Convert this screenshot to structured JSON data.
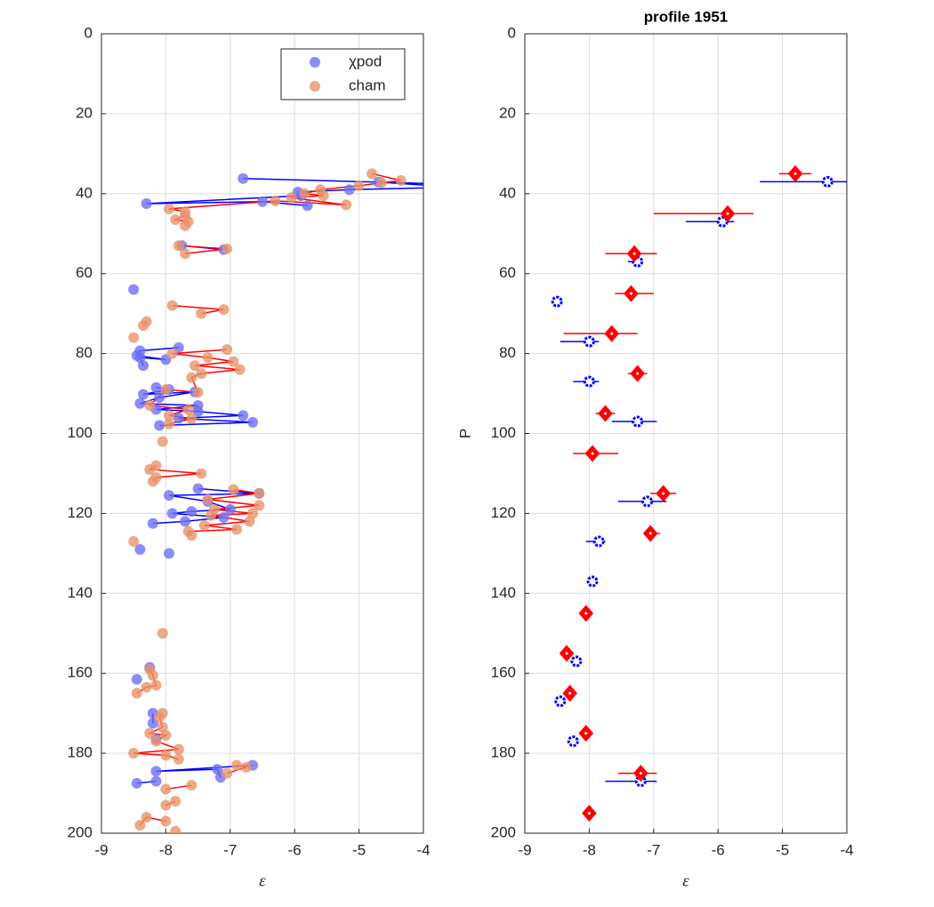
{
  "chart_data": [
    {
      "type": "scatter",
      "xlabel": "ε",
      "xlim": [
        -9,
        -4
      ],
      "ylim": [
        0,
        200
      ],
      "y_direction": "reverse",
      "xticks": [
        -9,
        -8,
        -7,
        -6,
        -5,
        -4
      ],
      "yticks": [
        0,
        20,
        40,
        60,
        80,
        100,
        120,
        140,
        160,
        180,
        200
      ],
      "grid": true,
      "legend": "upper right",
      "series": [
        {
          "name": "χpod",
          "color": "#0000ff",
          "marker_color": "#6f6ff5",
          "x": [
            -6.8,
            -3.6,
            -4.7,
            -3.5,
            -5.15,
            -5.95,
            -5.9,
            -8.3,
            -6.5,
            -5.8,
            null,
            -7.75,
            -7.1,
            null,
            -8.5,
            null,
            -7.8,
            -8.4,
            -8.45,
            -8.0,
            -8.4,
            -8.35,
            null,
            -8.15,
            -7.95,
            -8.35,
            -7.55,
            -8.1,
            -8.4,
            -7.5,
            -8.15,
            -7.5,
            -6.8,
            -7.8,
            -6.65,
            -8.1,
            null,
            -7.5,
            -6.55,
            -7.95,
            -7.35,
            -7.0,
            -7.6,
            -7.9,
            -7.1,
            -7.7,
            -8.2,
            null,
            -8.4,
            null,
            -7.95,
            null,
            -8.25,
            null,
            -8.45,
            null,
            -8.2,
            -8.2,
            null,
            -8.15,
            null,
            -6.65,
            -8.15,
            -7.2,
            -7.15,
            null,
            -8.15,
            -8.45
          ],
          "y": [
            36.2,
            37.6,
            37.1,
            38.4,
            39,
            39.6,
            40.5,
            42.5,
            42,
            43,
            null,
            53,
            54,
            null,
            64,
            null,
            78.5,
            79.3,
            80.5,
            81.5,
            81,
            83,
            null,
            88.5,
            89,
            90.2,
            89.6,
            91,
            92.5,
            93,
            94,
            94.5,
            95.5,
            96.2,
            97.2,
            98,
            null,
            113.8,
            115,
            115.5,
            117,
            119,
            119.5,
            120,
            121,
            122,
            122.5,
            null,
            129,
            null,
            130,
            null,
            158.5,
            null,
            161.5,
            null,
            170,
            172.5,
            null,
            176.5,
            null,
            183,
            184.5,
            184,
            186,
            null,
            187,
            187.5
          ]
        },
        {
          "name": "cham",
          "color": "#ff0000",
          "marker_color": "#e8946a",
          "x": [
            -4.8,
            -4.35,
            -4.65,
            -5.0,
            -5.6,
            -5.85,
            -5.55,
            -6.05,
            -5.2,
            -6.3,
            -7.95,
            -7.7,
            -7.7,
            -7.85,
            -7.65,
            -7.7,
            null,
            -7.8,
            -7.05,
            -7.7,
            null,
            -7.9,
            -7.1,
            -7.45,
            null,
            -8.3,
            -8.35,
            null,
            -8.5,
            null,
            -7.05,
            -7.9,
            -7.35,
            -6.95,
            -7.55,
            -6.85,
            -7.45,
            -7.6,
            -7.5,
            -8.0,
            -8.25,
            -7.65,
            -7.95,
            -7.6,
            -7.95,
            null,
            -8.05,
            null,
            -8.15,
            -8.25,
            -7.45,
            -8.15,
            -8.2,
            null,
            -6.95,
            -6.55,
            -7.35,
            -6.55,
            -7.25,
            -6.65,
            -7.3,
            -6.7,
            -7.4,
            -6.9,
            -7.65,
            -7.6,
            null,
            -8.5,
            null,
            -8.05,
            null,
            -8.25,
            -8.2,
            -8.15,
            -8.3,
            -8.45,
            null,
            -8.05,
            -8.1,
            -8.05,
            -8.25,
            -8.0,
            -8.15,
            -7.8,
            -8.5,
            -8.0,
            -7.8,
            null,
            -6.9,
            -6.75,
            -7.05,
            null,
            -7.6,
            -8.0,
            null,
            -7.85,
            -8.0,
            null,
            -8.0,
            -8.3,
            -8.4,
            null,
            -7.85
          ],
          "y": [
            35,
            36.7,
            37.3,
            38,
            39,
            40,
            40.5,
            41,
            42.8,
            41.8,
            43.8,
            44.5,
            45.5,
            46.5,
            47,
            48,
            null,
            53,
            53.8,
            55,
            null,
            68,
            69,
            70,
            null,
            72,
            73,
            null,
            76,
            null,
            79,
            80,
            81,
            82,
            83,
            84,
            85,
            86,
            89.7,
            89,
            93,
            94,
            95.5,
            96.3,
            97.6,
            null,
            102,
            null,
            108,
            109,
            110,
            111,
            112,
            null,
            114,
            115,
            116.5,
            118,
            119,
            120,
            120.5,
            122,
            123,
            124,
            124.5,
            125.5,
            null,
            127,
            null,
            150,
            null,
            159,
            160.5,
            163,
            163.5,
            165,
            null,
            170,
            171,
            173.5,
            175,
            175.5,
            177,
            179,
            180,
            180.5,
            181.5,
            null,
            183,
            183.5,
            185,
            null,
            188,
            189,
            null,
            192,
            193,
            null,
            197,
            196,
            198,
            null,
            199.5
          ]
        }
      ]
    },
    {
      "type": "errorbar",
      "title": "profile 1951",
      "xlabel": "ε",
      "ylabel": "P",
      "xlim": [
        -9,
        -4
      ],
      "ylim": [
        0,
        200
      ],
      "y_direction": "reverse",
      "xticks": [
        -9,
        -8,
        -7,
        -6,
        -5,
        -4
      ],
      "yticks": [
        0,
        20,
        40,
        60,
        80,
        100,
        120,
        140,
        160,
        180,
        200
      ],
      "grid": true,
      "series": [
        {
          "color": "#0000ff",
          "marker": "circle",
          "x": [
            -4.3,
            -5.93,
            -7.25,
            -8.5,
            -8.0,
            -8.0,
            -7.25,
            -7.1,
            -7.85,
            -7.95,
            -8.2,
            -8.45,
            -8.25,
            -7.2
          ],
          "xmin": [
            -5.35,
            -6.5,
            -7.4,
            -8.5,
            -8.45,
            -8.25,
            -7.65,
            -7.55,
            -8.05,
            -7.95,
            -8.2,
            -8.45,
            -8.25,
            -7.75
          ],
          "xmax": [
            -4.0,
            -5.75,
            -7.2,
            -8.5,
            -7.85,
            -7.85,
            -6.95,
            -6.8,
            -7.75,
            -7.95,
            -8.2,
            -8.45,
            -8.25,
            -6.95
          ],
          "y": [
            37,
            47,
            57,
            67,
            77,
            87,
            97,
            117,
            127,
            137,
            157,
            167,
            177,
            187
          ]
        },
        {
          "color": "#ff0000",
          "marker": "diamond",
          "x": [
            -4.8,
            -5.85,
            -7.3,
            -7.35,
            -7.65,
            -7.25,
            -7.75,
            -7.95,
            -6.85,
            -7.05,
            -8.05,
            -8.35,
            -8.3,
            -8.05,
            -7.2,
            -8.0
          ],
          "xmin": [
            -5.05,
            -7.0,
            -7.75,
            -7.6,
            -8.4,
            -7.4,
            -7.9,
            -8.25,
            -7.05,
            -7.15,
            -8.05,
            -8.35,
            -8.3,
            -8.1,
            -7.55,
            -8.0
          ],
          "xmax": [
            -4.55,
            -5.45,
            -6.95,
            -7.0,
            -7.25,
            -7.1,
            -7.6,
            -7.55,
            -6.65,
            -6.9,
            -8.05,
            -8.35,
            -8.3,
            -8.0,
            -6.95,
            -8.0
          ],
          "y": [
            35,
            45,
            55,
            65,
            75,
            85,
            95,
            105,
            115,
            125,
            145,
            155,
            165,
            175,
            185,
            195
          ]
        }
      ]
    }
  ]
}
